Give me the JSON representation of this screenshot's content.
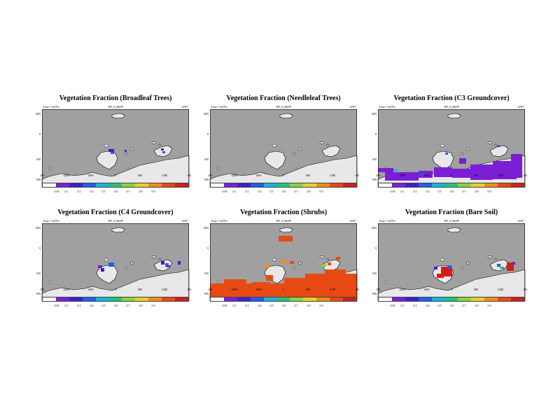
{
  "common": {
    "expt_label": "Expt = teXYh",
    "run_label": "395_0_MeSP",
    "season": "ANN"
  },
  "axes": {
    "lat_ticks": [
      "60N",
      "0",
      "45S",
      "90S"
    ],
    "lon_ticks": [
      "180",
      "120W",
      "60W",
      "0",
      "60E",
      "120E",
      "180"
    ]
  },
  "colorbar": {
    "colors": [
      "#ffffff",
      "#7a1fd6",
      "#3b1fd6",
      "#1f5ef0",
      "#18b4e0",
      "#22c47c",
      "#8cd23c",
      "#e8d02c",
      "#f08c1c",
      "#e84a14",
      "#d41c1c"
    ],
    "tick_labels": [
      "0.05",
      "0.1",
      "0.2",
      "0.4",
      "0.5",
      "0.6",
      "0.7",
      "0.8",
      "0.9"
    ]
  },
  "colors": {
    "ocean": "#a0a0a0",
    "land": "#e8e8e8",
    "coast": "#000000"
  },
  "panels": [
    {
      "title": "Vegetation Fraction (Broadleaf Trees)"
    },
    {
      "title": "Vegetation Fraction (Needleleaf Trees)"
    },
    {
      "title": "Vegetation Fraction (C3 Groundcover)"
    },
    {
      "title": "Vegetation Fraction (C4 Groundcover)"
    },
    {
      "title": "Vegetation Fraction (Shrubs)"
    },
    {
      "title": "Vegetation Fraction (Bare Soil)"
    }
  ]
}
